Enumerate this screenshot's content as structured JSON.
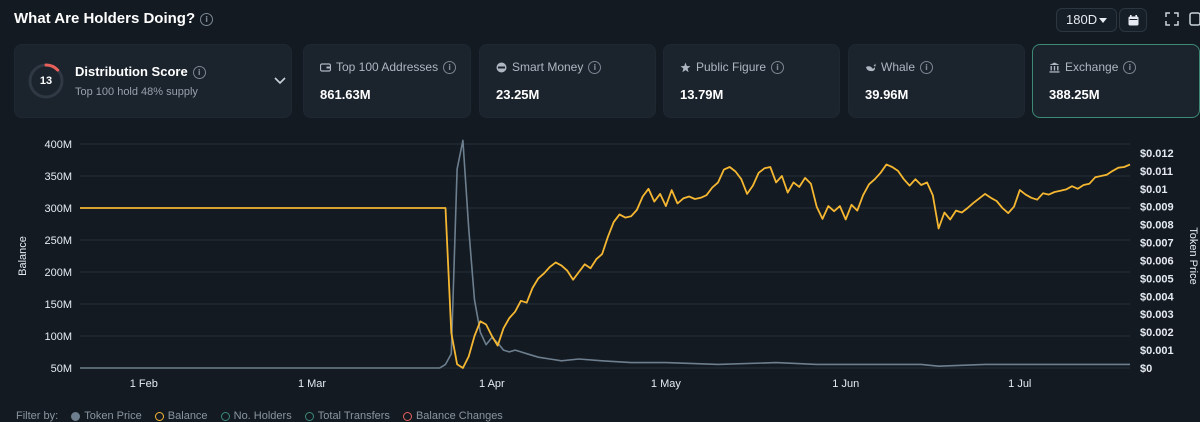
{
  "header": {
    "title": "What Are Holders Doing?",
    "period": "180D"
  },
  "score": {
    "value": "13",
    "title": "Distribution Score",
    "subtitle": "Top 100 hold 48% supply",
    "level": 0.13
  },
  "cards": [
    {
      "label": "Top 100 Addresses",
      "value": "861.63M",
      "icon": "wallet-icon"
    },
    {
      "label": "Smart Money",
      "value": "23.25M",
      "icon": "smart-money-icon"
    },
    {
      "label": "Public Figure",
      "value": "13.79M",
      "icon": "public-figure-icon"
    },
    {
      "label": "Whale",
      "value": "39.96M",
      "icon": "whale-icon"
    },
    {
      "label": "Exchange",
      "value": "388.25M",
      "icon": "exchange-icon"
    }
  ],
  "legend": {
    "filter_label": "Filter by:",
    "items": [
      "Token Price",
      "Balance",
      "No. Holders",
      "Total Transfers",
      "Balance Changes"
    ]
  },
  "colors": {
    "balance": "#f5b731",
    "token_price": "#6d7f8e",
    "accent": "#3d8a74",
    "score_ring": "#e8605a"
  },
  "chart_data": {
    "type": "line",
    "ylabel": "Balance",
    "y2label": "Token Price",
    "ylim": [
      50,
      400
    ],
    "y2lim": [
      0,
      0.0125
    ],
    "yticks": [
      "50M",
      "100M",
      "150M",
      "200M",
      "250M",
      "300M",
      "350M",
      "400M"
    ],
    "y2ticks": [
      "$0",
      "$0.001",
      "$0.002",
      "$0.003",
      "$0.004",
      "$0.005",
      "$0.006",
      "$0.007",
      "$0.008",
      "$0.009",
      "$0.01",
      "$0.011",
      "$0.012"
    ],
    "xlim": [
      "2024-01-21",
      "2024-07-20"
    ],
    "xticks": [
      {
        "label": "1 Feb",
        "date": "2024-02-01"
      },
      {
        "label": "1 Mar",
        "date": "2024-03-01"
      },
      {
        "label": "1 Apr",
        "date": "2024-04-01"
      },
      {
        "label": "1 May",
        "date": "2024-05-01"
      },
      {
        "label": "1 Jun",
        "date": "2024-06-01"
      },
      {
        "label": "1 Jul",
        "date": "2024-07-01"
      }
    ],
    "grid": true,
    "series": [
      {
        "name": "Balance",
        "axis": "left",
        "points": [
          [
            "2024-01-21",
            300
          ],
          [
            "2024-02-15",
            300
          ],
          [
            "2024-03-10",
            300
          ],
          [
            "2024-03-20",
            300
          ],
          [
            "2024-03-24",
            300
          ],
          [
            "2024-03-25",
            105
          ],
          [
            "2024-03-26",
            56
          ],
          [
            "2024-03-27",
            50
          ],
          [
            "2024-03-28",
            68
          ],
          [
            "2024-03-29",
            100
          ],
          [
            "2024-03-30",
            123
          ],
          [
            "2024-03-31",
            118
          ],
          [
            "2024-04-01",
            100
          ],
          [
            "2024-04-02",
            85
          ],
          [
            "2024-04-03",
            112
          ],
          [
            "2024-04-04",
            128
          ],
          [
            "2024-04-05",
            138
          ],
          [
            "2024-04-06",
            155
          ],
          [
            "2024-04-07",
            152
          ],
          [
            "2024-04-08",
            175
          ],
          [
            "2024-04-09",
            190
          ],
          [
            "2024-04-10",
            198
          ],
          [
            "2024-04-11",
            208
          ],
          [
            "2024-04-12",
            215
          ],
          [
            "2024-04-13",
            210
          ],
          [
            "2024-04-14",
            202
          ],
          [
            "2024-04-15",
            188
          ],
          [
            "2024-04-16",
            200
          ],
          [
            "2024-04-17",
            212
          ],
          [
            "2024-04-18",
            206
          ],
          [
            "2024-04-19",
            220
          ],
          [
            "2024-04-20",
            228
          ],
          [
            "2024-04-21",
            255
          ],
          [
            "2024-04-22",
            278
          ],
          [
            "2024-04-23",
            290
          ],
          [
            "2024-04-24",
            285
          ],
          [
            "2024-04-25",
            287
          ],
          [
            "2024-04-26",
            297
          ],
          [
            "2024-04-27",
            318
          ],
          [
            "2024-04-28",
            330
          ],
          [
            "2024-04-29",
            310
          ],
          [
            "2024-04-30",
            322
          ],
          [
            "2024-05-01",
            303
          ],
          [
            "2024-05-02",
            328
          ],
          [
            "2024-05-03",
            307
          ],
          [
            "2024-05-04",
            315
          ],
          [
            "2024-05-05",
            318
          ],
          [
            "2024-05-06",
            314
          ],
          [
            "2024-05-07",
            316
          ],
          [
            "2024-05-08",
            320
          ],
          [
            "2024-05-09",
            332
          ],
          [
            "2024-05-10",
            340
          ],
          [
            "2024-05-11",
            360
          ],
          [
            "2024-05-12",
            364
          ],
          [
            "2024-05-13",
            357
          ],
          [
            "2024-05-14",
            345
          ],
          [
            "2024-05-15",
            322
          ],
          [
            "2024-05-16",
            335
          ],
          [
            "2024-05-17",
            355
          ],
          [
            "2024-05-18",
            362
          ],
          [
            "2024-05-19",
            364
          ],
          [
            "2024-05-20",
            340
          ],
          [
            "2024-05-21",
            350
          ],
          [
            "2024-05-22",
            324
          ],
          [
            "2024-05-23",
            340
          ],
          [
            "2024-05-24",
            333
          ],
          [
            "2024-05-25",
            347
          ],
          [
            "2024-05-26",
            338
          ],
          [
            "2024-05-27",
            302
          ],
          [
            "2024-05-28",
            283
          ],
          [
            "2024-05-29",
            303
          ],
          [
            "2024-05-30",
            295
          ],
          [
            "2024-05-31",
            303
          ],
          [
            "2024-06-01",
            282
          ],
          [
            "2024-06-02",
            305
          ],
          [
            "2024-06-03",
            296
          ],
          [
            "2024-06-04",
            320
          ],
          [
            "2024-06-05",
            337
          ],
          [
            "2024-06-06",
            345
          ],
          [
            "2024-06-07",
            355
          ],
          [
            "2024-06-08",
            368
          ],
          [
            "2024-06-09",
            364
          ],
          [
            "2024-06-10",
            358
          ],
          [
            "2024-06-11",
            345
          ],
          [
            "2024-06-12",
            335
          ],
          [
            "2024-06-13",
            345
          ],
          [
            "2024-06-14",
            336
          ],
          [
            "2024-06-15",
            340
          ],
          [
            "2024-06-16",
            320
          ],
          [
            "2024-06-17",
            268
          ],
          [
            "2024-06-18",
            293
          ],
          [
            "2024-06-19",
            282
          ],
          [
            "2024-06-20",
            296
          ],
          [
            "2024-06-21",
            293
          ],
          [
            "2024-06-22",
            300
          ],
          [
            "2024-06-23",
            308
          ],
          [
            "2024-06-24",
            315
          ],
          [
            "2024-06-25",
            322
          ],
          [
            "2024-06-26",
            316
          ],
          [
            "2024-06-27",
            311
          ],
          [
            "2024-06-28",
            300
          ],
          [
            "2024-06-29",
            292
          ],
          [
            "2024-06-30",
            302
          ],
          [
            "2024-07-01",
            328
          ],
          [
            "2024-07-02",
            321
          ],
          [
            "2024-07-03",
            316
          ],
          [
            "2024-07-04",
            313
          ],
          [
            "2024-07-05",
            323
          ],
          [
            "2024-07-06",
            321
          ],
          [
            "2024-07-07",
            325
          ],
          [
            "2024-07-08",
            327
          ],
          [
            "2024-07-09",
            329
          ],
          [
            "2024-07-10",
            334
          ],
          [
            "2024-07-11",
            330
          ],
          [
            "2024-07-12",
            336
          ],
          [
            "2024-07-13",
            338
          ],
          [
            "2024-07-14",
            348
          ],
          [
            "2024-07-15",
            350
          ],
          [
            "2024-07-16",
            352
          ],
          [
            "2024-07-17",
            358
          ],
          [
            "2024-07-18",
            363
          ],
          [
            "2024-07-19",
            364
          ],
          [
            "2024-07-20",
            368
          ]
        ]
      },
      {
        "name": "Token Price",
        "axis": "right",
        "points": [
          [
            "2024-01-21",
            0
          ],
          [
            "2024-03-23",
            0
          ],
          [
            "2024-03-24",
            0.0002
          ],
          [
            "2024-03-25",
            0.0008
          ],
          [
            "2024-03-26",
            0.0111
          ],
          [
            "2024-03-27",
            0.0127
          ],
          [
            "2024-03-28",
            0.0078
          ],
          [
            "2024-03-29",
            0.0038
          ],
          [
            "2024-03-30",
            0.002
          ],
          [
            "2024-03-31",
            0.0013
          ],
          [
            "2024-04-01",
            0.0017
          ],
          [
            "2024-04-02",
            0.0014
          ],
          [
            "2024-04-03",
            0.001
          ],
          [
            "2024-04-04",
            0.0009
          ],
          [
            "2024-04-05",
            0.001
          ],
          [
            "2024-04-06",
            0.0009
          ],
          [
            "2024-04-07",
            0.0008
          ],
          [
            "2024-04-09",
            0.0006
          ],
          [
            "2024-04-11",
            0.0005
          ],
          [
            "2024-04-13",
            0.0004
          ],
          [
            "2024-04-16",
            0.0005
          ],
          [
            "2024-04-20",
            0.0004
          ],
          [
            "2024-04-25",
            0.0003
          ],
          [
            "2024-05-01",
            0.0003
          ],
          [
            "2024-05-10",
            0.0002
          ],
          [
            "2024-05-20",
            0.0003
          ],
          [
            "2024-05-27",
            0.0002
          ],
          [
            "2024-06-03",
            0.0002
          ],
          [
            "2024-06-14",
            0.0002
          ],
          [
            "2024-06-17",
            0.0001
          ],
          [
            "2024-06-25",
            0.0002
          ],
          [
            "2024-07-05",
            0.0002
          ],
          [
            "2024-07-20",
            0.0002
          ]
        ]
      }
    ]
  }
}
